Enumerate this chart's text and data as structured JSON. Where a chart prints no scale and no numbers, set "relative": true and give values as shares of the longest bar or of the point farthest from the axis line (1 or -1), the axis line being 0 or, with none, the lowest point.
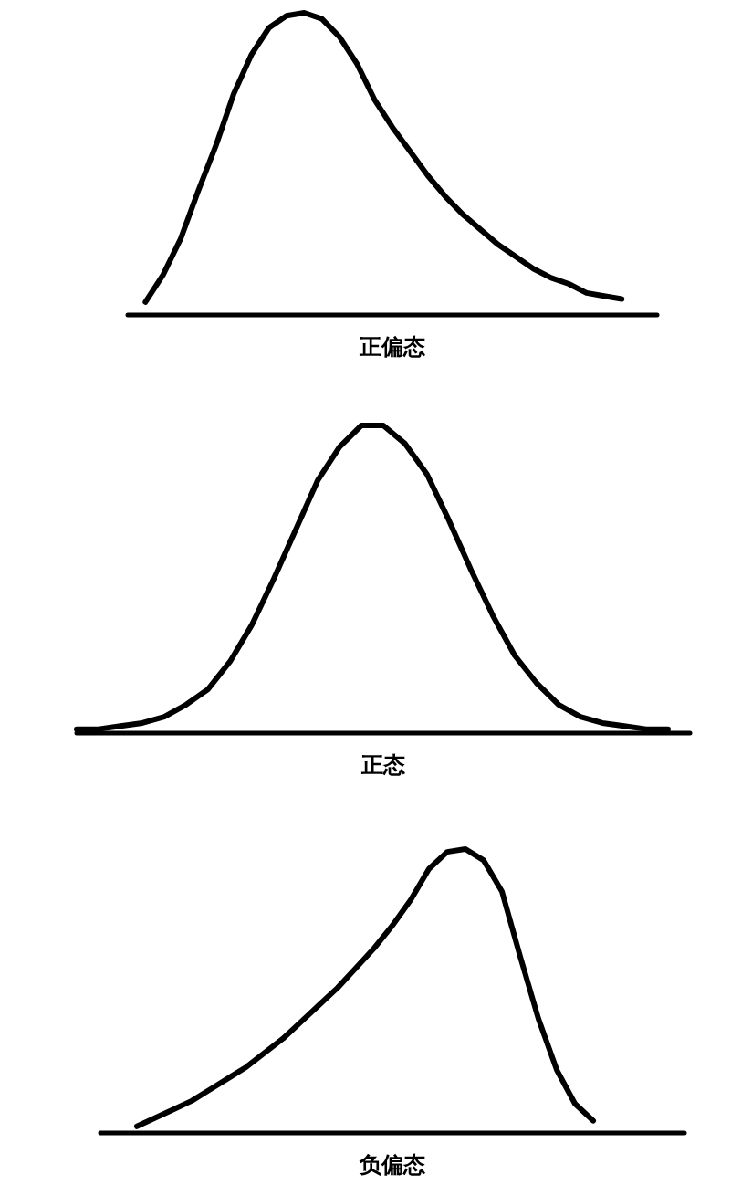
{
  "chart_data": [
    {
      "type": "line",
      "relative": true,
      "xlabel": "正偏态",
      "color": "#000000",
      "marker": "none",
      "line_style": "solid",
      "categories": [
        null,
        null,
        null,
        null,
        null,
        null,
        null,
        null,
        null,
        null,
        null,
        null,
        null,
        null,
        null,
        null,
        null,
        null,
        null,
        null,
        null,
        null,
        null,
        null,
        null,
        null,
        null,
        null,
        null,
        null,
        null
      ],
      "values": [
        null,
        0.04,
        0.13,
        0.25,
        0.41,
        0.56,
        0.73,
        0.86,
        0.95,
        0.99,
        1,
        0.98,
        0.92,
        0.83,
        0.71,
        0.62,
        0.54,
        0.46,
        0.39,
        0.33,
        0.28,
        0.23,
        0.19,
        0.15,
        0.12,
        0.1,
        0.07,
        0.06,
        0.05,
        null,
        null
      ]
    },
    {
      "type": "line",
      "relative": true,
      "xlabel": "正态",
      "color": "#000000",
      "marker": "none",
      "line_style": "solid",
      "categories": [
        null,
        null,
        null,
        null,
        null,
        null,
        null,
        null,
        null,
        null,
        null,
        null,
        null,
        null,
        null,
        null,
        null,
        null,
        null,
        null,
        null,
        null,
        null,
        null,
        null,
        null,
        null,
        null,
        null
      ],
      "values": [
        0.01,
        0.01,
        0.02,
        0.03,
        0.05,
        0.09,
        0.14,
        0.23,
        0.35,
        0.5,
        0.66,
        0.82,
        0.93,
        1,
        1,
        0.94,
        0.84,
        0.69,
        0.53,
        0.38,
        0.25,
        0.16,
        0.09,
        0.05,
        0.03,
        0.02,
        0.01,
        0.01,
        null
      ]
    },
    {
      "type": "line",
      "relative": true,
      "xlabel": "负偏态",
      "color": "#000000",
      "marker": "none",
      "line_style": "solid",
      "categories": [
        null,
        null,
        null,
        null,
        null,
        null,
        null,
        null,
        null,
        null,
        null,
        null,
        null,
        null,
        null,
        null,
        null,
        null,
        null,
        null,
        null,
        null,
        null,
        null,
        null,
        null,
        null,
        null,
        null,
        null,
        null,
        null,
        null
      ],
      "values": [
        null,
        null,
        0.02,
        0.05,
        0.08,
        0.11,
        0.15,
        0.19,
        0.23,
        0.28,
        0.33,
        0.39,
        0.45,
        0.51,
        0.58,
        0.65,
        0.73,
        0.82,
        0.93,
        0.99,
        1,
        0.96,
        0.85,
        0.62,
        0.4,
        0.22,
        0.1,
        0.04,
        null,
        null,
        null,
        null,
        null
      ]
    }
  ]
}
